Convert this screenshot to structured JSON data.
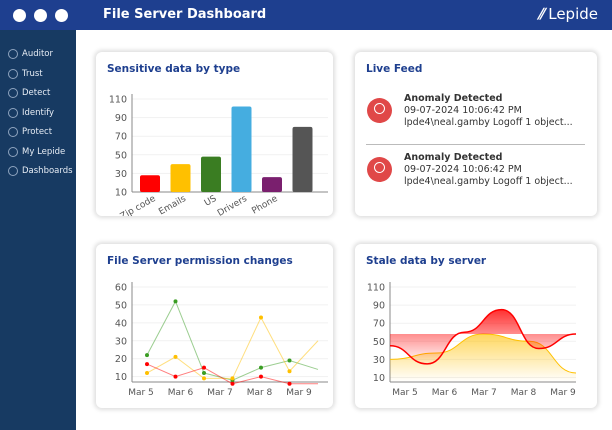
{
  "header": {
    "title": "File Server Dashboard",
    "logo": "Lepide"
  },
  "sidebar": {
    "items": [
      {
        "label": "Auditor",
        "icon": "megaphone-icon"
      },
      {
        "label": "Trust",
        "icon": "shield-icon"
      },
      {
        "label": "Detect",
        "icon": "crosshair-icon"
      },
      {
        "label": "Identify",
        "icon": "id-card-icon"
      },
      {
        "label": "Protect",
        "icon": "lock-board-icon"
      },
      {
        "label": "My Lepide",
        "icon": "star-icon"
      },
      {
        "label": "Dashboards",
        "icon": "globe-icon"
      }
    ]
  },
  "live_feed": {
    "title": "Live Feed",
    "items": [
      {
        "title": "Anomaly Detected",
        "time": "09-07-2024 10:06:42 PM",
        "detail": "lpde4\\neal.gamby Logoff 1 object..."
      },
      {
        "title": "Anomaly Detected",
        "time": "09-07-2024 10:06:42 PM",
        "detail": "lpde4\\neal.gamby Logoff 1 object..."
      }
    ]
  },
  "chart_data": [
    {
      "type": "bar",
      "title": "Sensitive data by type",
      "categories": [
        "Zip code",
        "Emails",
        "US",
        "Drivers",
        "Phone",
        ""
      ],
      "values": [
        28,
        40,
        48,
        102,
        26,
        80
      ],
      "colors": [
        "#ff0000",
        "#ffc000",
        "#3a7d22",
        "#45ade0",
        "#7a1f6e",
        "#555555"
      ],
      "yticks": [
        10,
        30,
        50,
        70,
        90,
        110
      ],
      "ylim": [
        10,
        110
      ],
      "grid": true
    },
    {
      "type": "line",
      "title": "File Server permission changes",
      "xticks": [
        "Mar 5",
        "Mar 6",
        "Mar 7",
        "Mar 8",
        "Mar 9"
      ],
      "yticks": [
        10,
        20,
        30,
        40,
        50,
        60
      ],
      "ylim": [
        7,
        60
      ],
      "grid": true,
      "series": [
        {
          "color": "#3a9d23",
          "values": [
            22,
            52,
            12,
            8,
            15,
            19,
            14
          ]
        },
        {
          "color": "#ffc000",
          "values": [
            12,
            21,
            9,
            9,
            43,
            13,
            30
          ]
        },
        {
          "color": "#ff0000",
          "values": [
            17,
            10,
            15,
            6,
            10,
            6,
            6
          ]
        }
      ]
    },
    {
      "type": "area",
      "title": "Stale data by server",
      "xticks": [
        "Mar 5",
        "Mar 6",
        "Mar 7",
        "Mar 8",
        "Mar 9"
      ],
      "yticks": [
        10,
        30,
        50,
        70,
        90,
        110
      ],
      "ylim": [
        5,
        110
      ],
      "grid": true,
      "series": [
        {
          "color": "#ffc000",
          "values": [
            30,
            37,
            58,
            50,
            15
          ]
        },
        {
          "color": "#ff0000",
          "values": [
            45,
            25,
            60,
            85,
            42,
            58
          ]
        }
      ]
    }
  ]
}
